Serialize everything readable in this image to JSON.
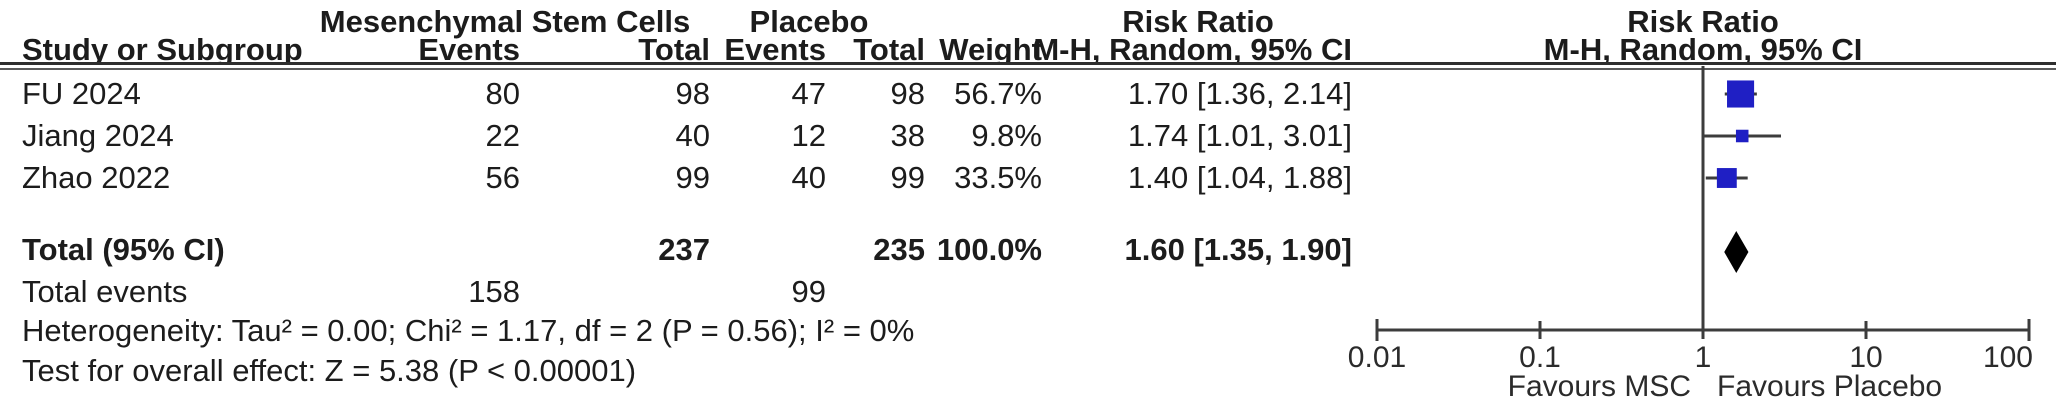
{
  "table": {
    "group_headers": {
      "msc": "Mesenchymal Stem Cells",
      "placebo": "Placebo",
      "risk_ratio_left": "Risk Ratio",
      "risk_ratio_right": "Risk Ratio"
    },
    "col_headers": {
      "study": "Study or Subgroup",
      "events1": "Events",
      "total1": "Total",
      "events2": "Events",
      "total2": "Total",
      "weight": "Weight",
      "ci": "M-H, Random, 95% CI",
      "ci_right": "M-H, Random, 95% CI"
    },
    "rows": [
      {
        "study": "FU 2024",
        "events1": "80",
        "total1": "98",
        "events2": "47",
        "total2": "98",
        "weight": "56.7%",
        "ci": "1.70 [1.36, 2.14]"
      },
      {
        "study": "Jiang 2024",
        "events1": "22",
        "total1": "40",
        "events2": "12",
        "total2": "38",
        "weight": "9.8%",
        "ci": "1.74 [1.01, 3.01]"
      },
      {
        "study": "Zhao 2022",
        "events1": "56",
        "total1": "99",
        "events2": "40",
        "total2": "99",
        "weight": "33.5%",
        "ci": "1.40 [1.04, 1.88]"
      }
    ],
    "total_row": {
      "label": "Total (95% CI)",
      "total1": "237",
      "total2": "235",
      "weight": "100.0%",
      "ci": "1.60 [1.35, 1.90]"
    },
    "total_events": {
      "label": "Total events",
      "events1": "158",
      "events2": "99"
    },
    "heterogeneity": "Heterogeneity: Tau² = 0.00; Chi² = 1.17, df = 2 (P = 0.56); I² = 0%",
    "overall_effect": "Test for overall effect: Z = 5.38 (P < 0.00001)"
  },
  "chart_data": {
    "type": "forest",
    "scale": "log10",
    "effect_measure": "Risk Ratio, M-H, Random, 95% CI",
    "axis_ticks": [
      0.01,
      0.1,
      1,
      10,
      100
    ],
    "tick_labels": [
      "0.01",
      "0.1",
      "1",
      "10",
      "100"
    ],
    "null_line": 1,
    "xlim": [
      0.01,
      100
    ],
    "favours_left": "Favours MSC",
    "favours_right": "Favours Placebo",
    "studies": [
      {
        "name": "FU 2024",
        "rr": 1.7,
        "ci_low": 1.36,
        "ci_high": 2.14,
        "weight": 56.7
      },
      {
        "name": "Jiang 2024",
        "rr": 1.74,
        "ci_low": 1.01,
        "ci_high": 3.01,
        "weight": 9.8
      },
      {
        "name": "Zhao 2022",
        "rr": 1.4,
        "ci_low": 1.04,
        "ci_high": 1.88,
        "weight": 33.5
      }
    ],
    "total": {
      "rr": 1.6,
      "ci_low": 1.35,
      "ci_high": 1.9
    },
    "marker_color": "#1f1fc4",
    "diamond_color": "#000000",
    "line_color": "#3c3c3c"
  }
}
